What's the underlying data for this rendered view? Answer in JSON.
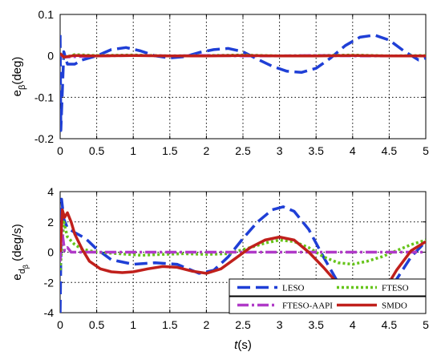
{
  "chart_data": [
    {
      "type": "line",
      "xlim": [
        0,
        5
      ],
      "ylim": [
        -0.2,
        0.1
      ],
      "xticks": [
        "0",
        "0.5",
        "1",
        "1.5",
        "2",
        "2.5",
        "3",
        "3.5",
        "4",
        "4.5",
        "5"
      ],
      "yticks": [
        "0.1",
        "0",
        "-0.1",
        "-0.2"
      ],
      "ylabel": "e_β(deg)",
      "ylabel_main": "e",
      "ylabel_sub": "β",
      "ylabel_unit": "(deg)",
      "grid": true,
      "series": [
        {
          "name": "LESO",
          "color": "#1f3fd6",
          "x": [
            0,
            0.01,
            0.05,
            0.1,
            0.2,
            0.3,
            0.5,
            0.7,
            0.9,
            1.1,
            1.3,
            1.5,
            1.7,
            1.9,
            2.1,
            2.3,
            2.5,
            2.7,
            2.9,
            3.1,
            3.3,
            3.5,
            3.7,
            3.9,
            4.1,
            4.3,
            4.5,
            4.7,
            4.9,
            5
          ],
          "y": [
            0.05,
            -0.18,
            0.01,
            -0.02,
            -0.02,
            -0.01,
            0.0,
            0.015,
            0.02,
            0.012,
            0.0,
            -0.005,
            -0.002,
            0.008,
            0.015,
            0.018,
            0.01,
            -0.008,
            -0.025,
            -0.037,
            -0.04,
            -0.03,
            -0.005,
            0.025,
            0.045,
            0.05,
            0.038,
            0.012,
            -0.01,
            -0.005
          ]
        },
        {
          "name": "FTESO",
          "color": "#66c41a",
          "x": [
            0,
            0.05,
            0.2,
            0.5,
            1,
            1.5,
            2,
            2.5,
            3,
            3.5,
            4,
            4.5,
            5
          ],
          "y": [
            0.005,
            -0.004,
            0.003,
            0.001,
            0.002,
            0.0,
            0.001,
            0.002,
            0.0,
            0.001,
            0.002,
            0.0,
            0.001
          ]
        },
        {
          "name": "FTESO-AAPI",
          "color": "#b03ac8",
          "x": [
            0,
            0.05,
            0.5,
            1,
            1.5,
            2,
            2.5,
            3,
            3.5,
            4,
            4.5,
            5
          ],
          "y": [
            0.004,
            -0.003,
            0.0,
            0.001,
            0.0,
            0.001,
            0.0,
            0.0,
            0.001,
            0.0,
            0.0,
            0.0
          ]
        },
        {
          "name": "SMDO",
          "color": "#c0201c",
          "x": [
            0,
            0.05,
            0.2,
            0.5,
            1,
            1.5,
            2,
            2.5,
            3,
            3.5,
            4,
            4.5,
            5
          ],
          "y": [
            0.006,
            -0.003,
            0.001,
            0.0,
            0.001,
            0.0,
            0.0,
            0.001,
            0.0,
            0.0,
            0.001,
            0.0,
            0.0
          ]
        }
      ]
    },
    {
      "type": "line",
      "xlim": [
        0,
        5
      ],
      "ylim": [
        -4,
        4
      ],
      "xticks": [
        "0",
        "0.5",
        "1",
        "1.5",
        "2",
        "2.5",
        "3",
        "3.5",
        "4",
        "4.5",
        "5"
      ],
      "yticks": [
        "4",
        "2",
        "0",
        "-2",
        "-4"
      ],
      "xlabel": "t(s)",
      "xlabel_main": "t",
      "xlabel_unit": "(s)",
      "ylabel": "e_dβ (deg/s)",
      "ylabel_main": "e",
      "ylabel_sub": "d",
      "ylabel_subsub": "β",
      "ylabel_unit": "(deg/s)",
      "grid": true,
      "legend_placement": "bottom-right",
      "series": [
        {
          "name": "LESO",
          "color": "#1f3fd6",
          "x": [
            0,
            0.02,
            0.05,
            0.1,
            0.2,
            0.35,
            0.5,
            0.7,
            1.0,
            1.3,
            1.6,
            1.9,
            2.1,
            2.3,
            2.5,
            2.7,
            2.9,
            3.05,
            3.2,
            3.4,
            3.6,
            3.8,
            4.0,
            4.2,
            4.4,
            4.6,
            4.8,
            5.0
          ],
          "y": [
            -4.0,
            3.5,
            2.2,
            1.6,
            1.3,
            0.9,
            0.2,
            -0.5,
            -0.8,
            -0.7,
            -0.8,
            -1.4,
            -1.2,
            -0.3,
            0.9,
            2.0,
            2.8,
            3.0,
            2.7,
            1.5,
            -0.3,
            -2.0,
            -3.3,
            -3.8,
            -3.2,
            -1.8,
            -0.3,
            0.7
          ]
        },
        {
          "name": "FTESO",
          "color": "#66c41a",
          "x": [
            0,
            0.05,
            0.1,
            0.2,
            0.3,
            0.5,
            0.8,
            1.1,
            1.4,
            1.7,
            2.0,
            2.3,
            2.6,
            2.8,
            3.0,
            3.2,
            3.4,
            3.6,
            3.8,
            4.0,
            4.2,
            4.4,
            4.6,
            4.8,
            5.0
          ],
          "y": [
            -1.2,
            2.0,
            1.0,
            0.5,
            0.2,
            0.0,
            -0.1,
            -0.2,
            -0.15,
            -0.1,
            -0.15,
            -0.1,
            0.3,
            0.6,
            0.8,
            0.7,
            0.3,
            -0.3,
            -0.7,
            -0.8,
            -0.6,
            -0.3,
            0.1,
            0.5,
            0.8
          ]
        },
        {
          "name": "FTESO-AAPI",
          "color": "#b03ac8",
          "x": [
            0,
            0.02,
            0.06,
            0.1,
            0.15,
            0.3,
            0.6,
            1.0,
            2.0,
            3.0,
            4.0,
            5.0
          ],
          "y": [
            -0.6,
            1.6,
            0.1,
            0.3,
            0.0,
            0.0,
            0.0,
            0.0,
            0.0,
            0.0,
            0.0,
            0.0
          ]
        },
        {
          "name": "SMDO",
          "color": "#c0201c",
          "x": [
            0,
            0.03,
            0.06,
            0.1,
            0.15,
            0.2,
            0.3,
            0.4,
            0.55,
            0.7,
            0.85,
            1.0,
            1.2,
            1.4,
            1.6,
            1.8,
            2.0,
            2.2,
            2.4,
            2.6,
            2.8,
            3.0,
            3.2,
            3.4,
            3.6,
            3.8,
            4.0,
            4.2,
            4.4,
            4.6,
            4.8,
            5.0
          ],
          "y": [
            0.0,
            2.8,
            2.3,
            2.6,
            2.0,
            1.2,
            0.2,
            -0.6,
            -1.1,
            -1.3,
            -1.35,
            -1.3,
            -1.1,
            -0.95,
            -1.0,
            -1.25,
            -1.4,
            -1.1,
            -0.4,
            0.3,
            0.8,
            1.0,
            0.8,
            0.0,
            -1.0,
            -2.1,
            -3.0,
            -3.5,
            -2.8,
            -1.2,
            0.1,
            0.7
          ]
        }
      ]
    }
  ]
}
